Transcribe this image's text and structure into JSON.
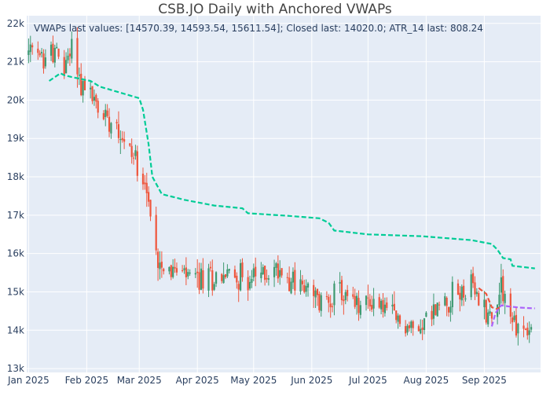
{
  "chart_data": {
    "type": "candlestick",
    "title": "CSB.JO Daily with Anchored VWAPs",
    "annotation": "VWAPs last values: [14570.39, 14593.54, 15611.54]; Closed last: 14020.0; ATR_14 last: 808.24",
    "xlabel": "",
    "ylabel": "",
    "x_range": [
      "2024-12-31",
      "2025-10-01"
    ],
    "ylim": [
      12900,
      22200
    ],
    "y_ticks": [
      13000,
      14000,
      15000,
      16000,
      17000,
      18000,
      19000,
      20000,
      21000,
      22000
    ],
    "y_tick_labels": [
      "13k",
      "14k",
      "15k",
      "16k",
      "17k",
      "18k",
      "19k",
      "20k",
      "21k",
      "22k"
    ],
    "x_ticks": [
      "2025-01-01",
      "2025-02-01",
      "2025-03-01",
      "2025-04-01",
      "2025-05-01",
      "2025-06-01",
      "2025-07-01",
      "2025-08-01",
      "2025-09-01"
    ],
    "x_tick_labels": [
      "Jan 2025",
      "Feb 2025",
      "Mar 2025",
      "Apr 2025",
      "May 2025",
      "Jun 2025",
      "Jul 2025",
      "Aug 2025",
      "Sep 2025"
    ],
    "grid": true,
    "legend": "none",
    "colors": {
      "background": "#e5ecf6",
      "gridline": "#ffffff",
      "up": "#3d9970",
      "down": "#ef553b",
      "vwap_1": "#00cc96",
      "vwap_2": "#ef553b",
      "vwap_3": "#ab63fa"
    },
    "price_path": [
      {
        "date": "2025-01-01",
        "price": 21200
      },
      {
        "date": "2025-01-08",
        "price": 21050
      },
      {
        "date": "2025-01-14",
        "price": 21300
      },
      {
        "date": "2025-01-20",
        "price": 20800
      },
      {
        "date": "2025-01-24",
        "price": 21500
      },
      {
        "date": "2025-01-29",
        "price": 20400
      },
      {
        "date": "2025-02-04",
        "price": 20100
      },
      {
        "date": "2025-02-07",
        "price": 19700
      },
      {
        "date": "2025-02-12",
        "price": 19600
      },
      {
        "date": "2025-02-17",
        "price": 19500
      },
      {
        "date": "2025-02-21",
        "price": 18900
      },
      {
        "date": "2025-02-25",
        "price": 18600
      },
      {
        "date": "2025-03-03",
        "price": 18200
      },
      {
        "date": "2025-03-06",
        "price": 17300
      },
      {
        "date": "2025-03-09",
        "price": 16000
      },
      {
        "date": "2025-03-12",
        "price": 15900
      },
      {
        "date": "2025-03-20",
        "price": 15500
      },
      {
        "date": "2025-04-01",
        "price": 15300
      },
      {
        "date": "2025-04-15",
        "price": 15450
      },
      {
        "date": "2025-05-01",
        "price": 15350
      },
      {
        "date": "2025-05-15",
        "price": 15600
      },
      {
        "date": "2025-05-25",
        "price": 15200
      },
      {
        "date": "2025-06-05",
        "price": 14700
      },
      {
        "date": "2025-06-15",
        "price": 15000
      },
      {
        "date": "2025-06-25",
        "price": 14600
      },
      {
        "date": "2025-07-05",
        "price": 14800
      },
      {
        "date": "2025-07-15",
        "price": 14300
      },
      {
        "date": "2025-07-25",
        "price": 14000
      },
      {
        "date": "2025-08-05",
        "price": 14500
      },
      {
        "date": "2025-08-15",
        "price": 14900
      },
      {
        "date": "2025-08-25",
        "price": 15100
      },
      {
        "date": "2025-09-01",
        "price": 14600
      },
      {
        "date": "2025-09-05",
        "price": 14300
      },
      {
        "date": "2025-09-10",
        "price": 15300
      },
      {
        "date": "2025-09-15",
        "price": 14300
      },
      {
        "date": "2025-09-20",
        "price": 14000
      },
      {
        "date": "2025-09-28",
        "price": 14020
      }
    ],
    "vwaps": [
      {
        "color": "#00cc96",
        "points": [
          [
            "2025-01-12",
            20500
          ],
          [
            "2025-01-15",
            20600
          ],
          [
            "2025-01-18",
            20700
          ],
          [
            "2025-01-20",
            20650
          ],
          [
            "2025-01-24",
            20600
          ],
          [
            "2025-01-29",
            20550
          ],
          [
            "2025-02-03",
            20500
          ],
          [
            "2025-02-08",
            20350
          ],
          [
            "2025-02-15",
            20250
          ],
          [
            "2025-02-22",
            20150
          ],
          [
            "2025-03-01",
            20050
          ],
          [
            "2025-03-03",
            19750
          ],
          [
            "2025-03-06",
            18850
          ],
          [
            "2025-03-08",
            18000
          ],
          [
            "2025-03-13",
            17550
          ],
          [
            "2025-03-25",
            17400
          ],
          [
            "2025-04-10",
            17250
          ],
          [
            "2025-04-25",
            17180
          ],
          [
            "2025-04-28",
            17050
          ],
          [
            "2025-05-20",
            16980
          ],
          [
            "2025-06-05",
            16920
          ],
          [
            "2025-06-10",
            16800
          ],
          [
            "2025-06-13",
            16600
          ],
          [
            "2025-07-01",
            16500
          ],
          [
            "2025-07-30",
            16450
          ],
          [
            "2025-08-25",
            16350
          ],
          [
            "2025-09-05",
            16250
          ],
          [
            "2025-09-08",
            16100
          ],
          [
            "2025-09-11",
            15880
          ],
          [
            "2025-09-15",
            15850
          ],
          [
            "2025-09-16",
            15680
          ],
          [
            "2025-09-28",
            15611.54
          ]
        ]
      },
      {
        "color": "#ef553b",
        "points": [
          [
            "2025-08-29",
            15100
          ],
          [
            "2025-09-02",
            14950
          ],
          [
            "2025-09-05",
            14600
          ],
          [
            "2025-09-08",
            14550
          ],
          [
            "2025-09-09",
            14600
          ]
        ]
      },
      {
        "color": "#ab63fa",
        "points": [
          [
            "2025-09-05",
            14100
          ],
          [
            "2025-09-07",
            14450
          ],
          [
            "2025-09-10",
            14650
          ],
          [
            "2025-09-14",
            14620
          ],
          [
            "2025-09-20",
            14590
          ],
          [
            "2025-09-28",
            14570.39
          ]
        ]
      }
    ]
  }
}
